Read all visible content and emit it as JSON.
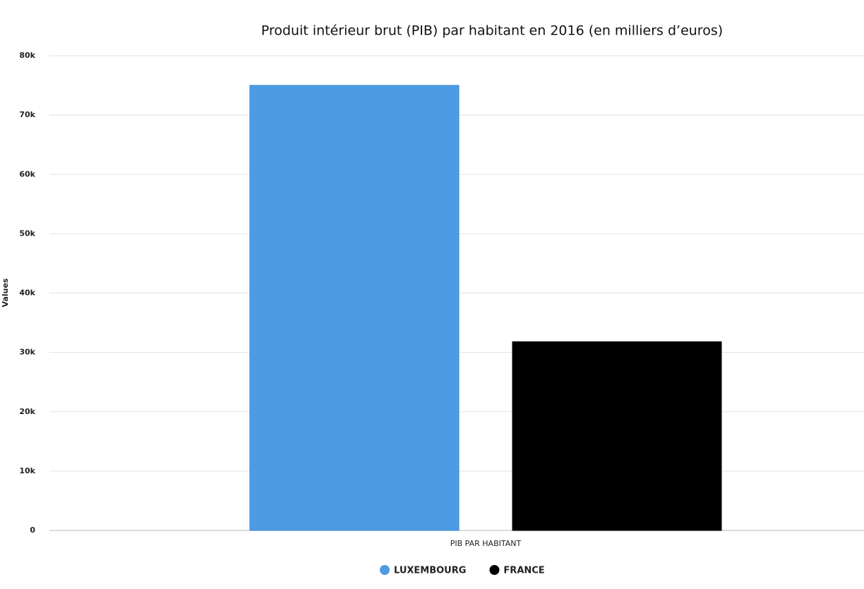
{
  "chart_data": {
    "type": "bar",
    "title": "Produit intérieur brut (PIB) par habitant en 2016 (en milliers d’euros)",
    "y_label": "Values",
    "categories": [
      "PIB PAR HABITANT"
    ],
    "series": [
      {
        "name": "LUXEMBOURG",
        "color": "#4d9be3",
        "values": [
          75000
        ]
      },
      {
        "name": "FRANCE",
        "color": "#000000",
        "values": [
          31800
        ]
      }
    ],
    "ylim": [
      0,
      80000
    ],
    "yticks": [
      0,
      {
        "value": 10000,
        "label": "10k"
      },
      {
        "value": 20000,
        "label": "20k"
      },
      {
        "value": 30000,
        "label": "30k"
      },
      {
        "value": 40000,
        "label": "40k"
      },
      {
        "value": 50000,
        "label": "50k"
      },
      {
        "value": 60000,
        "label": "60k"
      },
      {
        "value": 70000,
        "label": "70k"
      },
      {
        "value": 80000,
        "label": "80k"
      }
    ],
    "grid": true,
    "legend": "bottom"
  }
}
